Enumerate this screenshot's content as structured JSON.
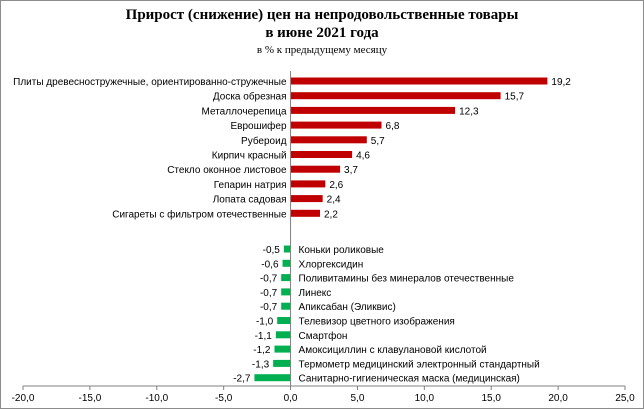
{
  "chart_data": {
    "type": "bar",
    "orientation": "horizontal",
    "title_line1": "Прирост (снижение) цен на непродовольственные товары",
    "title_line2": "в июне 2021 года",
    "subtitle": "в % к предыдущему месяцу",
    "xlim": [
      -20.0,
      25.0
    ],
    "x_ticks": [
      "-20,0",
      "-15,0",
      "-10,0",
      "-5,0",
      "0,0",
      "5,0",
      "10,0",
      "15,0",
      "20,0",
      "25,0"
    ],
    "x_tick_values": [
      -20,
      -15,
      -10,
      -5,
      0,
      5,
      10,
      15,
      20,
      25
    ],
    "grid": false,
    "legend": "none",
    "positive_color": "#c00000",
    "negative_color": "#00b050",
    "categories": [
      "Плиты древесностружечные, ориентированно-стружечные",
      "Доска обрезная",
      "Металлочерепица",
      "Еврошифер",
      "Рубероид",
      "Кирпич красный",
      "Стекло оконное листовое",
      "Гепарин натрия",
      "Лопата садовая",
      "Сигареты с фильтром отечественные",
      "Коньки роликовые",
      "Хлоргексидин",
      "Поливитамины без минералов отечественные",
      "Линекс",
      "Апиксабан (Эликвис)",
      "Телевизор цветного изображения",
      "Смартфон",
      "Амоксициллин с клавулановой кислотой",
      "Термометр медицинский электронный стандартный",
      "Санитарно-гигиеническая маска (медицинская)"
    ],
    "values": [
      19.2,
      15.7,
      12.3,
      6.8,
      5.7,
      4.6,
      3.7,
      2.6,
      2.4,
      2.2,
      -0.5,
      -0.6,
      -0.7,
      -0.7,
      -0.7,
      -1.0,
      -1.1,
      -1.2,
      -1.3,
      -2.7
    ],
    "value_labels": [
      "19,2",
      "15,7",
      "12,3",
      "6,8",
      "5,7",
      "4,6",
      "3,7",
      "2,6",
      "2,4",
      "2,2",
      "-0,5",
      "-0,6",
      "-0,7",
      "-0,7",
      "-0,7",
      "-1,0",
      "-1,1",
      "-1,2",
      "-1,3",
      "-2,7"
    ]
  }
}
